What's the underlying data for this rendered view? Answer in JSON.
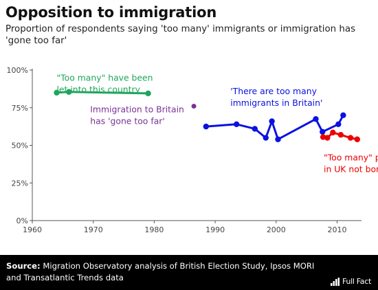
{
  "header": {
    "title": "Opposition to immigration",
    "subtitle": "Proportion of respondents saying 'too many' immigrants or immigration has 'gone too far'"
  },
  "footer": {
    "source_label": "Source:",
    "source_text": "Migration Observatory analysis of British Election Study, Ipsos MORI and Transatlantic Trends data",
    "logo_text": "Full Fact"
  },
  "chart_data": {
    "type": "line",
    "x_range": [
      1960,
      2014
    ],
    "y_range": [
      0,
      100
    ],
    "x_ticks": [
      {
        "value": 1960,
        "label": "1960"
      },
      {
        "value": 1970,
        "label": "1970"
      },
      {
        "value": 1980,
        "label": "1980"
      },
      {
        "value": 1990,
        "label": "1990"
      },
      {
        "value": 2000,
        "label": "2000"
      },
      {
        "value": 2010,
        "label": "2010"
      }
    ],
    "y_ticks": [
      {
        "value": 0,
        "label": "0%"
      },
      {
        "value": 25,
        "label": "25%"
      },
      {
        "value": 50,
        "label": "50%"
      },
      {
        "value": 75,
        "label": "75%"
      },
      {
        "value": 100,
        "label": "100%"
      }
    ],
    "grid": false,
    "series": [
      {
        "key": "let-into-country",
        "color": "#1ea65b",
        "label_lines": [
          "\"Too many\" have been",
          "let into this country"
        ],
        "label_anchor": {
          "x": 1964,
          "y": 93
        },
        "points": [
          [
            1964,
            85
          ],
          [
            1966,
            85.5
          ],
          [
            1979,
            84.5
          ]
        ]
      },
      {
        "key": "gone-too-far",
        "color": "#7a3296",
        "label_lines": [
          "Immigration to Britain",
          "has 'gone too far'"
        ],
        "label_anchor": {
          "x": 1969.5,
          "y": 72
        },
        "points": [
          [
            1986.5,
            76
          ]
        ]
      },
      {
        "key": "too-many-immigrants",
        "color": "#0a12e0",
        "label_lines": [
          "'There are too many",
          "immigrants in Britain'"
        ],
        "label_anchor": {
          "x": 1992.5,
          "y": 84
        },
        "points": [
          [
            1988.5,
            62.5
          ],
          [
            1993.5,
            64
          ],
          [
            1996.5,
            61
          ],
          [
            1998.3,
            55
          ],
          [
            1999.3,
            66
          ],
          [
            2000.3,
            54
          ],
          [
            2006.5,
            67.5
          ],
          [
            2007.6,
            59
          ],
          [
            2010.2,
            64
          ],
          [
            2011,
            70
          ]
        ]
      },
      {
        "key": "not-born-here",
        "color": "#ee0000",
        "label_lines": [
          "\"Too many\" people living",
          "in UK not born here"
        ],
        "label_anchor": {
          "x": 2007.8,
          "y": 40
        },
        "points": [
          [
            2007.7,
            55.5
          ],
          [
            2008.4,
            55
          ],
          [
            2009.3,
            58.5
          ],
          [
            2010.6,
            57
          ],
          [
            2012.2,
            55
          ],
          [
            2013.3,
            54
          ]
        ]
      }
    ]
  }
}
